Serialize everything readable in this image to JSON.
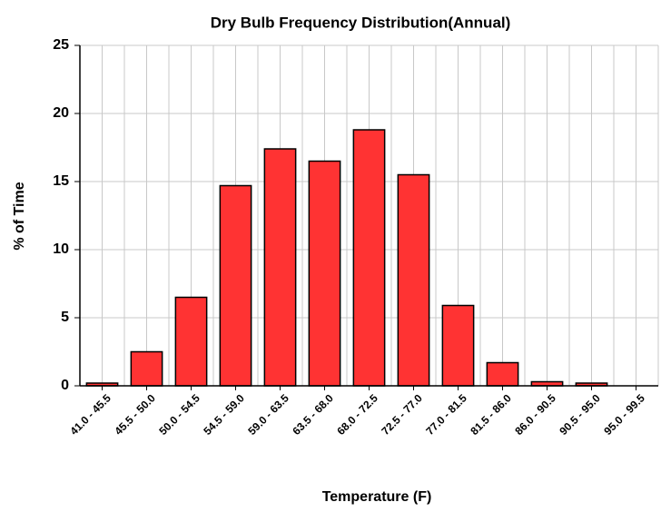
{
  "chart_data": {
    "type": "bar",
    "title": "Dry Bulb Frequency Distribution(Annual)",
    "x_label": "Temperature (F)",
    "y_label": "% of Time",
    "categories": [
      "41.0 - 45.5",
      "45.5 - 50.0",
      "50.0 - 54.5",
      "54.5 - 59.0",
      "59.0 - 63.5",
      "63.5 - 68.0",
      "68.0 - 72.5",
      "72.5 - 77.0",
      "77.0 - 81.5",
      "81.5 - 86.0",
      "86.0 - 90.5",
      "90.5 - 95.0",
      "95.0 - 99.5"
    ],
    "values": [
      0.2,
      2.5,
      6.5,
      14.7,
      17.4,
      16.5,
      18.8,
      15.5,
      5.9,
      1.7,
      0.3,
      0.2,
      0
    ],
    "color": "#ff3333",
    "ylim": [
      0,
      25
    ],
    "yticks": [
      0,
      5,
      10,
      15,
      20,
      25
    ],
    "grid": true
  }
}
